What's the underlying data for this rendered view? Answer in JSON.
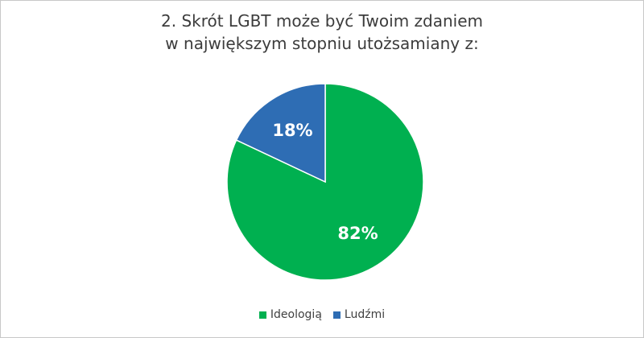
{
  "chart_data": {
    "type": "pie",
    "title_lines": [
      "2. Skrót LGBT może być Twoim zdaniem",
      "w największym stopniu utożsamiany z:"
    ],
    "slices": [
      {
        "name": "Ideologią",
        "value": 82,
        "label": "82%",
        "color": "#00b050"
      },
      {
        "name": "Ludźmi",
        "value": 18,
        "label": "18%",
        "color": "#2e6db4"
      }
    ],
    "legend_position": "bottom",
    "start": "top, clockwise"
  }
}
